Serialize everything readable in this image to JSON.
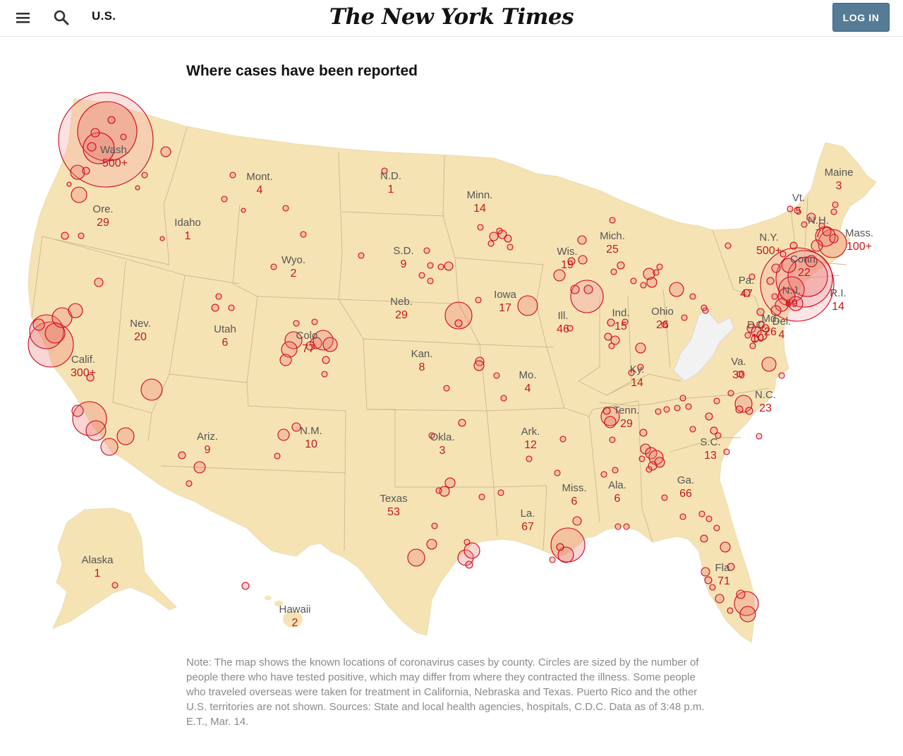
{
  "header": {
    "section": "U.S.",
    "logo": "The New York Times",
    "login_label": "LOG IN",
    "menu_icon": "hamburger-menu-icon",
    "search_icon": "search-icon"
  },
  "map": {
    "title": "Where cases have been reported",
    "circle_color": "#d0021b",
    "land_color": "#f6e3b4",
    "no_data_color": "#f2f2f2",
    "states": [
      {
        "name": "Wash.",
        "count": "500+"
      },
      {
        "name": "Ore.",
        "count": "29"
      },
      {
        "name": "Calif.",
        "count": "300+"
      },
      {
        "name": "Nev.",
        "count": "20"
      },
      {
        "name": "Idaho",
        "count": "1"
      },
      {
        "name": "Mont.",
        "count": "4"
      },
      {
        "name": "Wyo.",
        "count": "2"
      },
      {
        "name": "Utah",
        "count": "6"
      },
      {
        "name": "Colo.",
        "count": "77"
      },
      {
        "name": "Ariz.",
        "count": "9"
      },
      {
        "name": "N.M.",
        "count": "10"
      },
      {
        "name": "N.D.",
        "count": "1"
      },
      {
        "name": "S.D.",
        "count": "9"
      },
      {
        "name": "Neb.",
        "count": "29"
      },
      {
        "name": "Kan.",
        "count": "8"
      },
      {
        "name": "Okla.",
        "count": "3"
      },
      {
        "name": "Texas",
        "count": "53"
      },
      {
        "name": "Minn.",
        "count": "14"
      },
      {
        "name": "Iowa",
        "count": "17"
      },
      {
        "name": "Mo.",
        "count": "4"
      },
      {
        "name": "Ark.",
        "count": "12"
      },
      {
        "name": "La.",
        "count": "67"
      },
      {
        "name": "Wis.",
        "count": "19"
      },
      {
        "name": "Ill.",
        "count": "46"
      },
      {
        "name": "Mich.",
        "count": "25"
      },
      {
        "name": "Ind.",
        "count": "15"
      },
      {
        "name": "Ohio",
        "count": "26"
      },
      {
        "name": "Ky.",
        "count": "14"
      },
      {
        "name": "Tenn.",
        "count": "29"
      },
      {
        "name": "Miss.",
        "count": "6"
      },
      {
        "name": "Ala.",
        "count": "6"
      },
      {
        "name": "Ga.",
        "count": "66"
      },
      {
        "name": "Fla.",
        "count": "71"
      },
      {
        "name": "S.C.",
        "count": "13"
      },
      {
        "name": "N.C.",
        "count": "23"
      },
      {
        "name": "Va.",
        "count": "30"
      },
      {
        "name": "Pa.",
        "count": "47"
      },
      {
        "name": "N.Y.",
        "count": "500+"
      },
      {
        "name": "Vt.",
        "count": "5"
      },
      {
        "name": "N.H.",
        "count": "7"
      },
      {
        "name": "Maine",
        "count": "3"
      },
      {
        "name": "Mass.",
        "count": "100+"
      },
      {
        "name": "Conn.",
        "count": "22"
      },
      {
        "name": "R.I.",
        "count": "14"
      },
      {
        "name": "N.J.",
        "count": "69"
      },
      {
        "name": "Md.",
        "count": "26"
      },
      {
        "name": "D.C.",
        "count": "10"
      },
      {
        "name": "Del.",
        "count": "4"
      },
      {
        "name": "Alaska",
        "count": "1"
      },
      {
        "name": "Hawaii",
        "count": "2"
      }
    ]
  },
  "note": "Note: The map shows the known locations of coronavirus cases by county. Circles are sized by the number of people there who have tested positive, which may differ from where they contracted the illness. Some people who traveled overseas were taken for treatment in California, Nebraska and Texas. Puerto Rico and the other U.S. territories are not shown. Sources: State and local health agencies, hospitals, C.D.C. Data as of 3:48 p.m. E.T., Mar. 14."
}
